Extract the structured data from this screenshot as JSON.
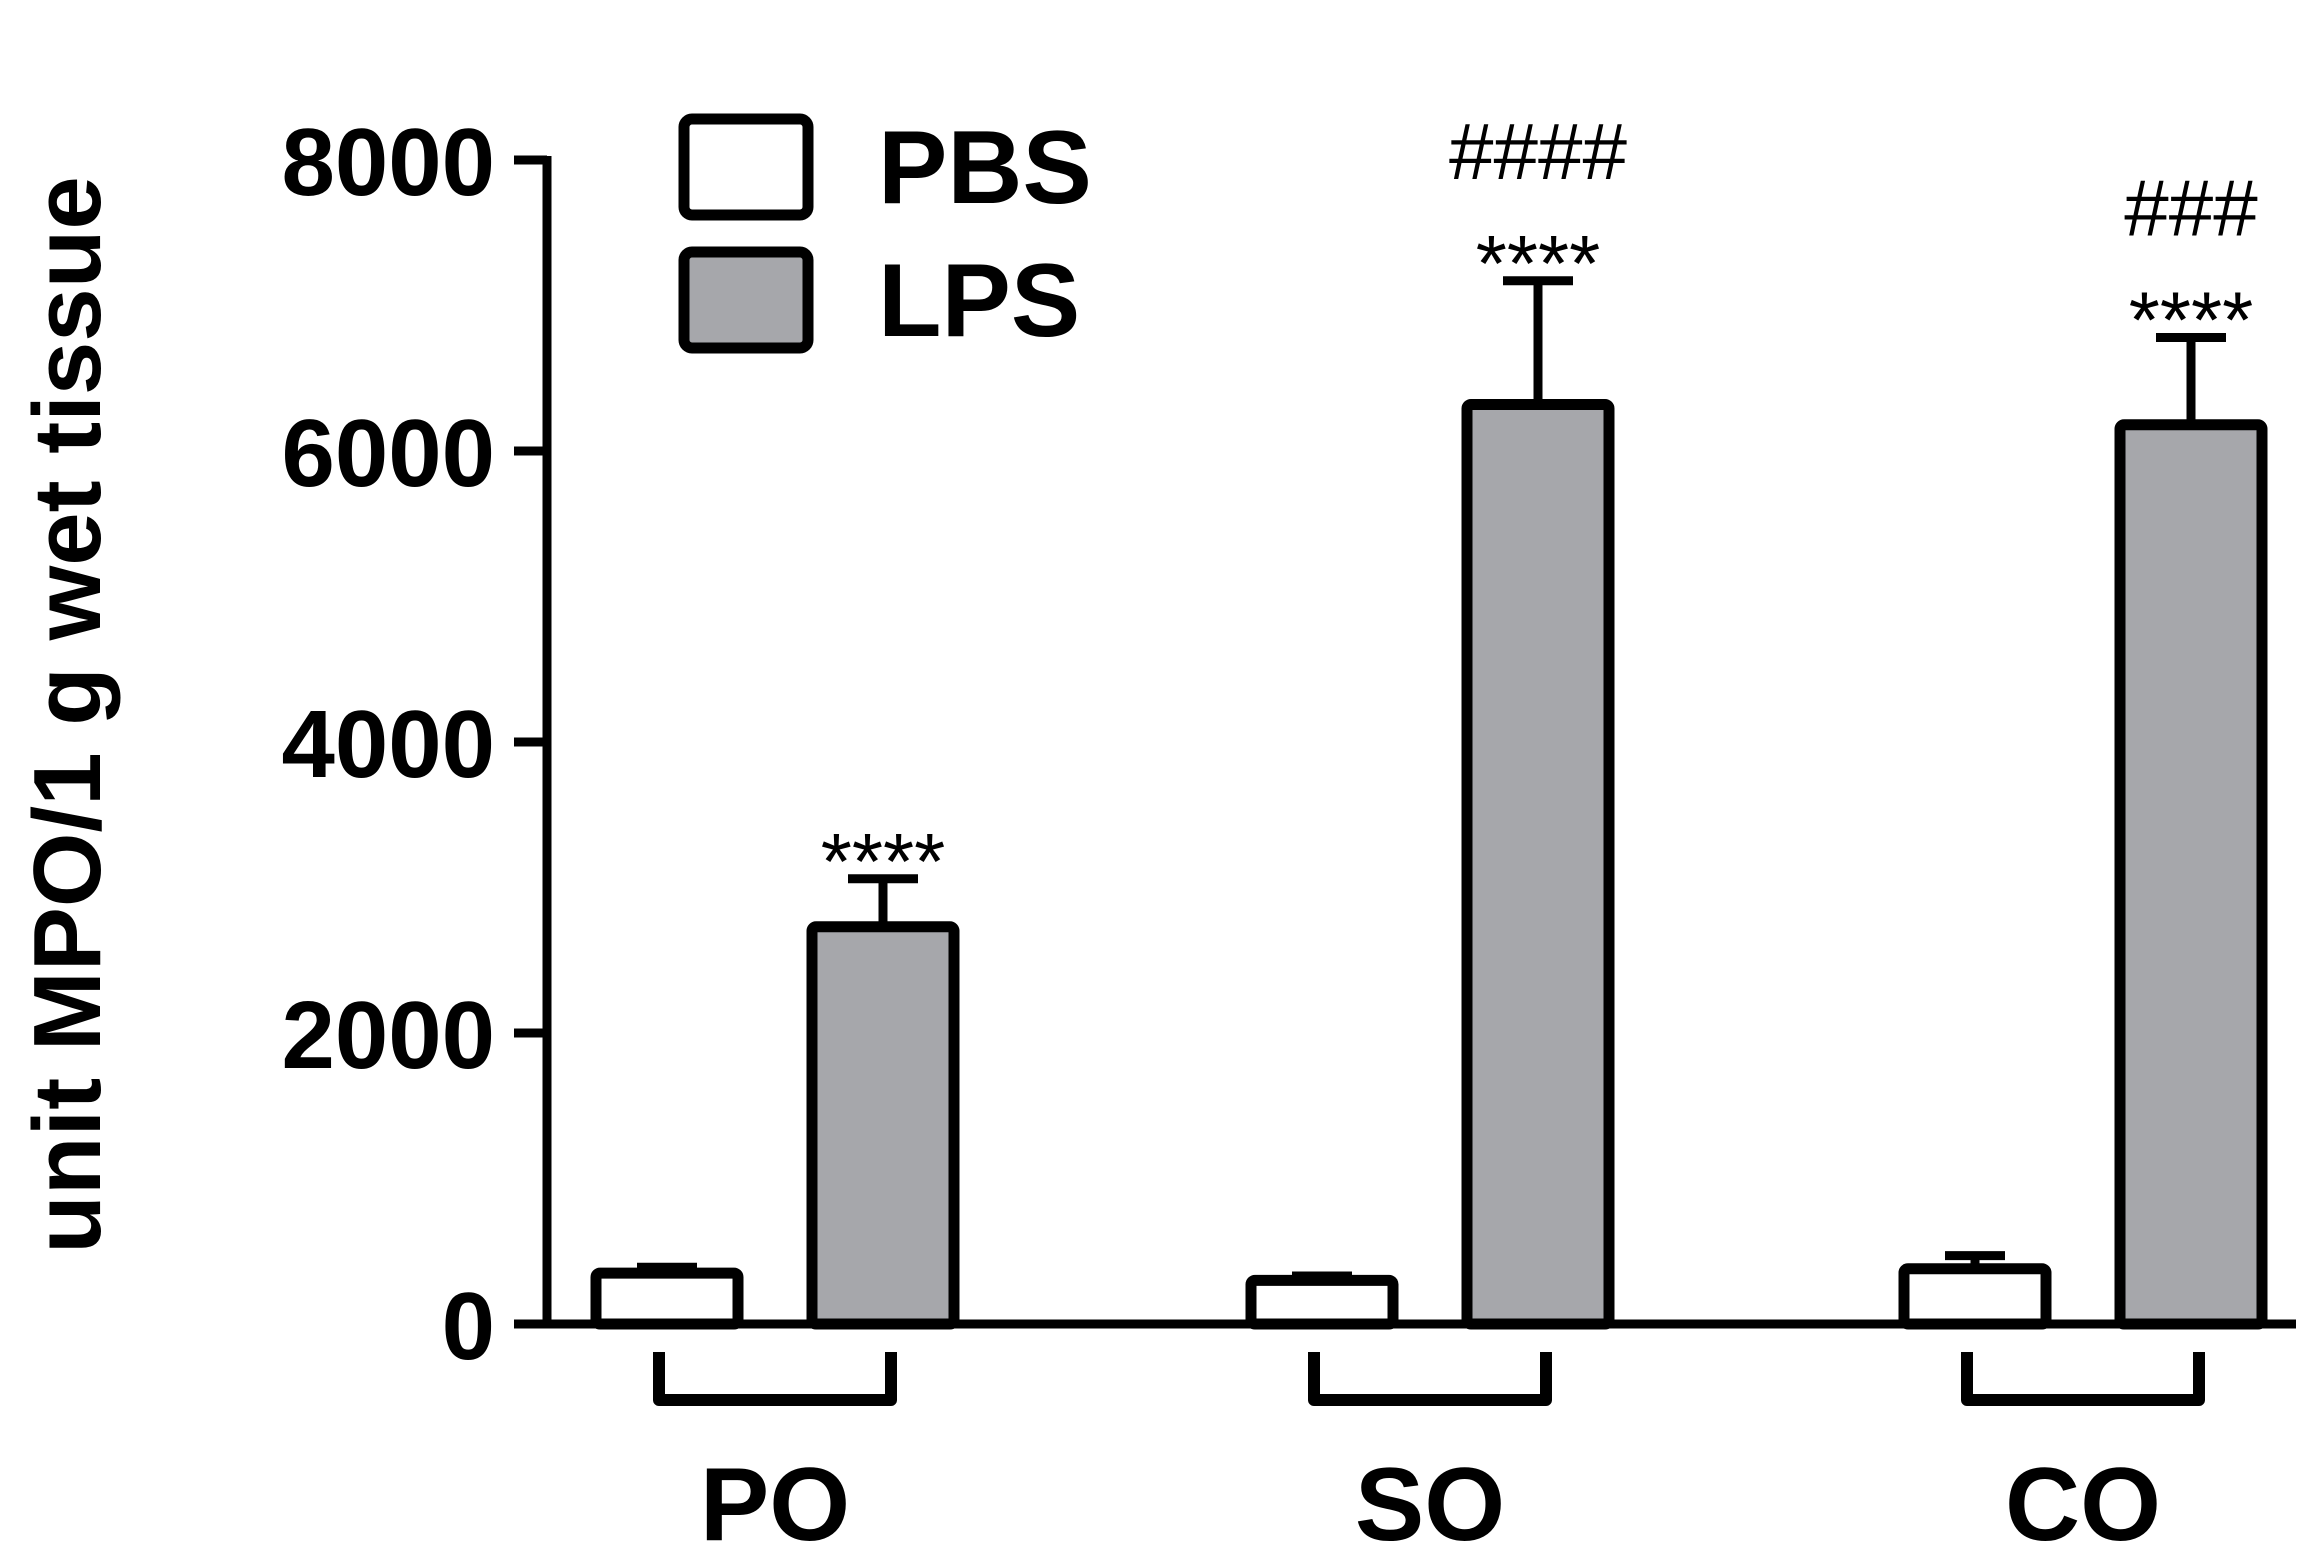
{
  "chart_data": {
    "type": "bar",
    "ylabel": "unit MPO/1 g wet tissue",
    "ylim": [
      0,
      8000
    ],
    "yticks": [
      "0",
      "2000",
      "4000",
      "6000",
      "8000"
    ],
    "categories": [
      "PO",
      "SO",
      "CO"
    ],
    "series": [
      {
        "name": "PBS",
        "color": "#ffffff",
        "values": [
          350,
          300,
          380
        ],
        "errors": [
          40,
          30,
          90
        ]
      },
      {
        "name": "LPS",
        "color": "#a6a7ab",
        "values": [
          2730,
          6320,
          6180
        ],
        "errors": [
          330,
          850,
          600
        ]
      }
    ],
    "annotations": [
      {
        "category": "PO",
        "series": "LPS",
        "lines": [
          "****"
        ]
      },
      {
        "category": "SO",
        "series": "LPS",
        "lines": [
          "####",
          "****"
        ]
      },
      {
        "category": "CO",
        "series": "LPS",
        "lines": [
          "###",
          "****"
        ]
      }
    ],
    "legend": "top-left",
    "grid": false
  }
}
